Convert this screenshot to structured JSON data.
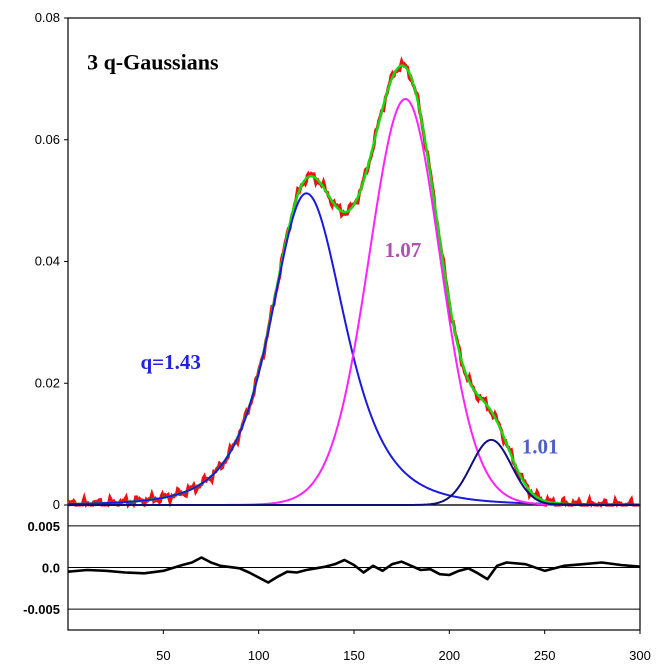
{
  "chart_data": {
    "type": "line",
    "title": "",
    "xlabel": "",
    "ylabel": "",
    "xlim": [
      0,
      300
    ],
    "ylim": [
      0,
      0.08
    ],
    "grid": false,
    "x_ticks": [
      "50",
      "100",
      "150",
      "200",
      "250",
      "300"
    ],
    "y_ticks": [
      "0",
      "0.02",
      "0.04",
      "0.06",
      "0.08"
    ],
    "annotations": [
      {
        "text": "3 q-Gaussians",
        "color": "#000000",
        "x": 10,
        "y": 0.0715,
        "size": 22
      },
      {
        "text": "q=1.43",
        "color": "#2222dd",
        "x": 38,
        "y": 0.0223,
        "size": 21
      },
      {
        "text": "1.07",
        "color": "#b050b0",
        "x": 166,
        "y": 0.0407,
        "size": 21
      },
      {
        "text": "1.01",
        "color": "#4f5fc8",
        "x": 238,
        "y": 0.0085,
        "size": 21
      }
    ],
    "components": [
      {
        "color": "#1a1adc",
        "center": 125,
        "amplitude": 0.0512,
        "width": 24,
        "q": 1.43,
        "side_scale": [
          1.02,
          1.1
        ]
      },
      {
        "color": "#ff22ff",
        "center": 177,
        "amplitude": 0.0667,
        "width": 27,
        "q": 1.07,
        "side_scale": [
          1.0,
          0.95
        ]
      },
      {
        "color": "#101078",
        "center": 222,
        "amplitude": 0.0107,
        "width": 15,
        "q": 1.01,
        "side_scale": [
          1.0,
          1.0
        ]
      }
    ],
    "series": [
      {
        "role": "data",
        "color": "#ee1111"
      },
      {
        "role": "fit",
        "color": "#11dd11"
      }
    ],
    "residual": {
      "ylim": [
        -0.0075,
        0.0075
      ],
      "y_ticks": [
        "0.005",
        "0.0",
        "-0.005"
      ],
      "tick_values": [
        0.005,
        0.0,
        -0.005
      ],
      "color": "#000000",
      "x": [
        0,
        10,
        20,
        30,
        40,
        50,
        60,
        65,
        70,
        75,
        80,
        90,
        95,
        100,
        105,
        110,
        115,
        120,
        125,
        130,
        135,
        140,
        145,
        150,
        155,
        160,
        165,
        170,
        175,
        180,
        185,
        190,
        195,
        200,
        205,
        210,
        215,
        220,
        225,
        230,
        240,
        250,
        260,
        270,
        280,
        290,
        300
      ],
      "values": [
        -0.0005,
        -0.0003,
        -0.0004,
        -0.0006,
        -0.0007,
        -0.0004,
        0.0003,
        0.0006,
        0.0012,
        0.0006,
        0.0002,
        -0.0001,
        -0.0006,
        -0.0012,
        -0.0018,
        -0.0011,
        -0.0005,
        -0.0006,
        -0.0003,
        -0.0001,
        0.0001,
        0.0004,
        0.0009,
        0.0003,
        -0.0006,
        0.0002,
        -0.0004,
        0.0004,
        0.0007,
        0.0002,
        -0.0003,
        -0.0002,
        -0.0008,
        -0.0009,
        -0.0004,
        -0.0001,
        -0.0007,
        -0.0014,
        0.0002,
        0.0006,
        0.0004,
        -0.0004,
        0.0002,
        0.0004,
        0.0006,
        0.0003,
        0.0001
      ]
    }
  }
}
